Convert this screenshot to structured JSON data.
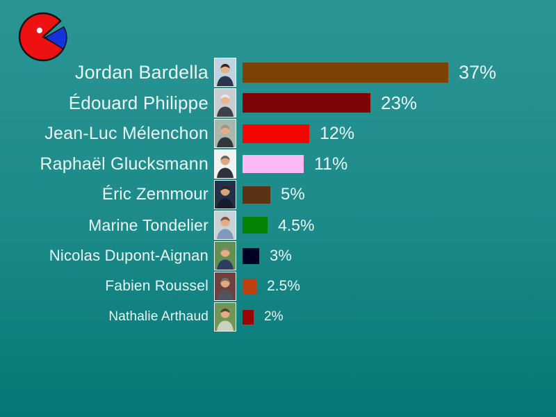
{
  "page": {
    "background_gradient_top": "#2B9594",
    "background_gradient_bottom": "#047876",
    "text_color": "#EBF7F7"
  },
  "logo": {
    "name": "pie-pacman-logo",
    "body_color": "#EE1111",
    "wedge_color": "#1632DC",
    "outline_color": "#141414",
    "eye_color": "#FFFFFF"
  },
  "chart_data": {
    "type": "bar",
    "orientation": "horizontal",
    "title": "",
    "xlabel": "",
    "ylabel": "",
    "xlim": [
      0,
      40
    ],
    "grid": false,
    "legend": false,
    "categories": [
      "Jordan Bardella",
      "Édouard Philippe",
      "Jean-Luc Mélenchon",
      "Raphaël Glucksmann",
      "Éric Zemmour",
      "Marine Tondelier",
      "Nicolas Dupont-Aignan",
      "Fabien Roussel",
      "Nathalie Arthaud"
    ],
    "values": [
      37,
      23,
      12,
      11,
      5,
      4.5,
      3,
      2.5,
      2
    ],
    "value_labels": [
      "37%",
      "23%",
      "12%",
      "11%",
      "5%",
      "4.5%",
      "3%",
      "2.5%",
      "2%"
    ],
    "bar_colors": [
      "#7B4203",
      "#7D0505",
      "#F50500",
      "#FBB9F6",
      "#5B3314",
      "#038203",
      "#010124",
      "#BF400F",
      "#9A0505"
    ]
  },
  "candidates": [
    {
      "name": "Jordan Bardella",
      "value": 37,
      "label": "37%",
      "bar_color": "#7B4203",
      "photo": {
        "bg": "#BFD3E0",
        "suit": "#2A3550",
        "hair": "#33261C",
        "skin": "#E5B08C"
      }
    },
    {
      "name": "Édouard Philippe",
      "value": 23,
      "label": "23%",
      "bar_color": "#7D0505",
      "photo": {
        "bg": "#C9CDD1",
        "suit": "#3C414C",
        "hair": "#E9E9E9",
        "skin": "#E8B490"
      }
    },
    {
      "name": "Jean-Luc Mélenchon",
      "value": 12,
      "label": "12%",
      "bar_color": "#F50500",
      "photo": {
        "bg": "#A8B8AC",
        "suit": "#33383D",
        "hair": "#9A948A",
        "skin": "#E3AE88"
      }
    },
    {
      "name": "Raphaël Glucksmann",
      "value": 11,
      "label": "11%",
      "bar_color": "#FBB9F6",
      "photo": {
        "bg": "#F1F3F3",
        "suit": "#2E323C",
        "hair": "#6E6458",
        "skin": "#DEA882"
      }
    },
    {
      "name": "Éric Zemmour",
      "value": 5,
      "label": "5%",
      "bar_color": "#5B3314",
      "photo": {
        "bg": "#233048",
        "suit": "#161D2E",
        "hair": "#2A2420",
        "skin": "#D9A47E"
      }
    },
    {
      "name": "Marine Tondelier",
      "value": 4.5,
      "label": "4.5%",
      "bar_color": "#038203",
      "photo": {
        "bg": "#C6D2D6",
        "suit": "#8099BC",
        "hair": "#7A5636",
        "skin": "#E2AC86"
      }
    },
    {
      "name": "Nicolas Dupont-Aignan",
      "value": 3,
      "label": "3%",
      "bar_color": "#010124",
      "photo": {
        "bg": "#628F52",
        "suit": "#2C3F63",
        "hair": "#8F8574",
        "skin": "#E2AC86"
      }
    },
    {
      "name": "Fabien Roussel",
      "value": 2.5,
      "label": "2.5%",
      "bar_color": "#BF400F",
      "photo": {
        "bg": "#6E4040",
        "suit": "#50545E",
        "hair": "#787266",
        "skin": "#E0A883"
      }
    },
    {
      "name": "Nathalie Arthaud",
      "value": 2,
      "label": "2%",
      "bar_color": "#9A0505",
      "photo": {
        "bg": "#6F9657",
        "suit": "#C9D1BF",
        "hair": "#55422E",
        "skin": "#E2AC86"
      }
    }
  ]
}
